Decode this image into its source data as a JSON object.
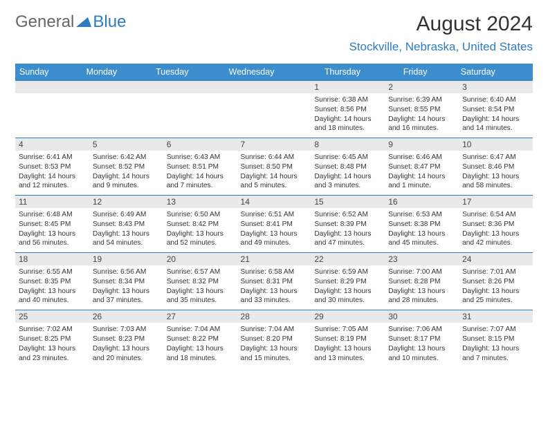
{
  "logo": {
    "text1": "General",
    "text2": "Blue"
  },
  "title": "August 2024",
  "location": "Stockville, Nebraska, United States",
  "colors": {
    "header_bg": "#3c8dcc",
    "accent": "#2d7bc0",
    "daynum_bg": "#e9e9e9",
    "row_border": "#2d7bc0"
  },
  "day_names": [
    "Sunday",
    "Monday",
    "Tuesday",
    "Wednesday",
    "Thursday",
    "Friday",
    "Saturday"
  ],
  "weeks": [
    [
      {
        "n": "",
        "sr": "",
        "ss": "",
        "dl": ""
      },
      {
        "n": "",
        "sr": "",
        "ss": "",
        "dl": ""
      },
      {
        "n": "",
        "sr": "",
        "ss": "",
        "dl": ""
      },
      {
        "n": "",
        "sr": "",
        "ss": "",
        "dl": ""
      },
      {
        "n": "1",
        "sr": "Sunrise: 6:38 AM",
        "ss": "Sunset: 8:56 PM",
        "dl": "Daylight: 14 hours and 18 minutes."
      },
      {
        "n": "2",
        "sr": "Sunrise: 6:39 AM",
        "ss": "Sunset: 8:55 PM",
        "dl": "Daylight: 14 hours and 16 minutes."
      },
      {
        "n": "3",
        "sr": "Sunrise: 6:40 AM",
        "ss": "Sunset: 8:54 PM",
        "dl": "Daylight: 14 hours and 14 minutes."
      }
    ],
    [
      {
        "n": "4",
        "sr": "Sunrise: 6:41 AM",
        "ss": "Sunset: 8:53 PM",
        "dl": "Daylight: 14 hours and 12 minutes."
      },
      {
        "n": "5",
        "sr": "Sunrise: 6:42 AM",
        "ss": "Sunset: 8:52 PM",
        "dl": "Daylight: 14 hours and 9 minutes."
      },
      {
        "n": "6",
        "sr": "Sunrise: 6:43 AM",
        "ss": "Sunset: 8:51 PM",
        "dl": "Daylight: 14 hours and 7 minutes."
      },
      {
        "n": "7",
        "sr": "Sunrise: 6:44 AM",
        "ss": "Sunset: 8:50 PM",
        "dl": "Daylight: 14 hours and 5 minutes."
      },
      {
        "n": "8",
        "sr": "Sunrise: 6:45 AM",
        "ss": "Sunset: 8:48 PM",
        "dl": "Daylight: 14 hours and 3 minutes."
      },
      {
        "n": "9",
        "sr": "Sunrise: 6:46 AM",
        "ss": "Sunset: 8:47 PM",
        "dl": "Daylight: 14 hours and 1 minute."
      },
      {
        "n": "10",
        "sr": "Sunrise: 6:47 AM",
        "ss": "Sunset: 8:46 PM",
        "dl": "Daylight: 13 hours and 58 minutes."
      }
    ],
    [
      {
        "n": "11",
        "sr": "Sunrise: 6:48 AM",
        "ss": "Sunset: 8:45 PM",
        "dl": "Daylight: 13 hours and 56 minutes."
      },
      {
        "n": "12",
        "sr": "Sunrise: 6:49 AM",
        "ss": "Sunset: 8:43 PM",
        "dl": "Daylight: 13 hours and 54 minutes."
      },
      {
        "n": "13",
        "sr": "Sunrise: 6:50 AM",
        "ss": "Sunset: 8:42 PM",
        "dl": "Daylight: 13 hours and 52 minutes."
      },
      {
        "n": "14",
        "sr": "Sunrise: 6:51 AM",
        "ss": "Sunset: 8:41 PM",
        "dl": "Daylight: 13 hours and 49 minutes."
      },
      {
        "n": "15",
        "sr": "Sunrise: 6:52 AM",
        "ss": "Sunset: 8:39 PM",
        "dl": "Daylight: 13 hours and 47 minutes."
      },
      {
        "n": "16",
        "sr": "Sunrise: 6:53 AM",
        "ss": "Sunset: 8:38 PM",
        "dl": "Daylight: 13 hours and 45 minutes."
      },
      {
        "n": "17",
        "sr": "Sunrise: 6:54 AM",
        "ss": "Sunset: 8:36 PM",
        "dl": "Daylight: 13 hours and 42 minutes."
      }
    ],
    [
      {
        "n": "18",
        "sr": "Sunrise: 6:55 AM",
        "ss": "Sunset: 8:35 PM",
        "dl": "Daylight: 13 hours and 40 minutes."
      },
      {
        "n": "19",
        "sr": "Sunrise: 6:56 AM",
        "ss": "Sunset: 8:34 PM",
        "dl": "Daylight: 13 hours and 37 minutes."
      },
      {
        "n": "20",
        "sr": "Sunrise: 6:57 AM",
        "ss": "Sunset: 8:32 PM",
        "dl": "Daylight: 13 hours and 35 minutes."
      },
      {
        "n": "21",
        "sr": "Sunrise: 6:58 AM",
        "ss": "Sunset: 8:31 PM",
        "dl": "Daylight: 13 hours and 33 minutes."
      },
      {
        "n": "22",
        "sr": "Sunrise: 6:59 AM",
        "ss": "Sunset: 8:29 PM",
        "dl": "Daylight: 13 hours and 30 minutes."
      },
      {
        "n": "23",
        "sr": "Sunrise: 7:00 AM",
        "ss": "Sunset: 8:28 PM",
        "dl": "Daylight: 13 hours and 28 minutes."
      },
      {
        "n": "24",
        "sr": "Sunrise: 7:01 AM",
        "ss": "Sunset: 8:26 PM",
        "dl": "Daylight: 13 hours and 25 minutes."
      }
    ],
    [
      {
        "n": "25",
        "sr": "Sunrise: 7:02 AM",
        "ss": "Sunset: 8:25 PM",
        "dl": "Daylight: 13 hours and 23 minutes."
      },
      {
        "n": "26",
        "sr": "Sunrise: 7:03 AM",
        "ss": "Sunset: 8:23 PM",
        "dl": "Daylight: 13 hours and 20 minutes."
      },
      {
        "n": "27",
        "sr": "Sunrise: 7:04 AM",
        "ss": "Sunset: 8:22 PM",
        "dl": "Daylight: 13 hours and 18 minutes."
      },
      {
        "n": "28",
        "sr": "Sunrise: 7:04 AM",
        "ss": "Sunset: 8:20 PM",
        "dl": "Daylight: 13 hours and 15 minutes."
      },
      {
        "n": "29",
        "sr": "Sunrise: 7:05 AM",
        "ss": "Sunset: 8:19 PM",
        "dl": "Daylight: 13 hours and 13 minutes."
      },
      {
        "n": "30",
        "sr": "Sunrise: 7:06 AM",
        "ss": "Sunset: 8:17 PM",
        "dl": "Daylight: 13 hours and 10 minutes."
      },
      {
        "n": "31",
        "sr": "Sunrise: 7:07 AM",
        "ss": "Sunset: 8:15 PM",
        "dl": "Daylight: 13 hours and 7 minutes."
      }
    ]
  ]
}
